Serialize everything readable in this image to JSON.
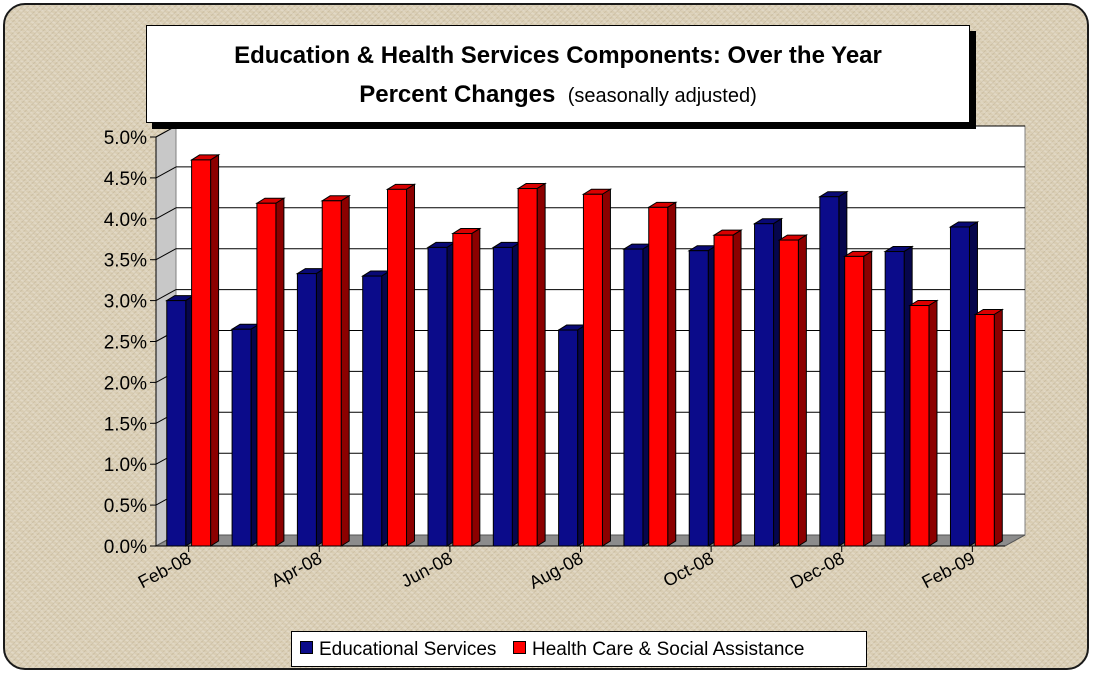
{
  "chart_data": {
    "type": "bar",
    "title": "Education & Health Services Components: Over the Year",
    "title_line2": "Percent Changes",
    "subtitle": "(seasonally adjusted)",
    "xlabel": "",
    "ylabel": "",
    "ylim": [
      0,
      5
    ],
    "yticks": [
      "0.0%",
      "0.5%",
      "1.0%",
      "1.5%",
      "2.0%",
      "2.5%",
      "3.0%",
      "3.5%",
      "4.0%",
      "4.5%",
      "5.0%"
    ],
    "categories": [
      "Feb-08",
      "Mar-08",
      "Apr-08",
      "May-08",
      "Jun-08",
      "Jul-08",
      "Aug-08",
      "Sep-08",
      "Oct-08",
      "Nov-08",
      "Dec-08",
      "Jan-09",
      "Feb-09"
    ],
    "xtick_labels": [
      "Feb-08",
      "Apr-08",
      "Jun-08",
      "Aug-08",
      "Oct-08",
      "Dec-08",
      "Feb-09"
    ],
    "grid": true,
    "legend_position": "bottom",
    "series": [
      {
        "name": "Educational Services",
        "color": "#0b0b8a",
        "values": [
          3.0,
          2.65,
          3.33,
          3.3,
          3.65,
          3.65,
          2.64,
          3.63,
          3.61,
          3.94,
          4.27,
          3.6,
          3.9
        ]
      },
      {
        "name": "Health Care & Social Assistance",
        "color": "#ff0000",
        "values": [
          4.72,
          4.19,
          4.22,
          4.36,
          3.82,
          4.37,
          4.3,
          4.14,
          3.8,
          3.74,
          3.54,
          2.94,
          2.83
        ]
      }
    ]
  }
}
